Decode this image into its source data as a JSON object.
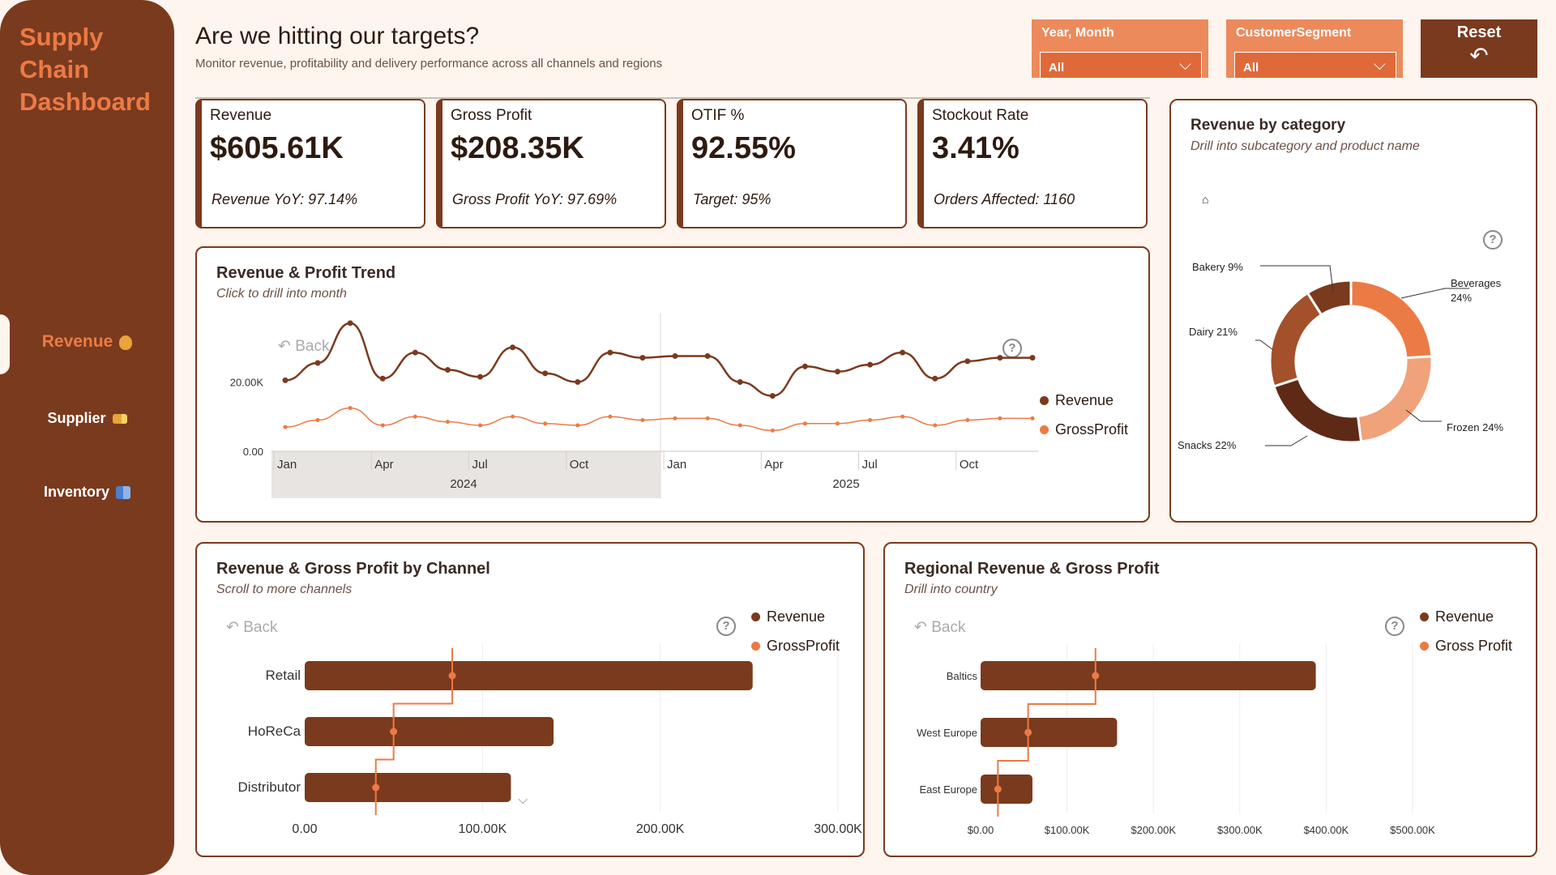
{
  "colors": {
    "revenue": "#7a3a1e",
    "profit": "#ec7a45",
    "accent": "#ec7a45",
    "sidebar": "#7a3a1e"
  },
  "sidebar": {
    "brand_line1": "Supply",
    "brand_line2": "Chain",
    "brand_line3": "Dashboard",
    "items": [
      {
        "label": "Revenue",
        "icon": "money-bag-icon",
        "active": true
      },
      {
        "label": "Supplier",
        "icon": "truck-icon",
        "active": false
      },
      {
        "label": "Inventory",
        "icon": "boxes-icon",
        "active": false
      }
    ]
  },
  "header": {
    "title": "Are we hitting our targets?",
    "subtitle": "Monitor revenue, profitability and delivery performance across all channels and regions"
  },
  "filters": {
    "year_month": {
      "label": "Year, Month",
      "value": "All"
    },
    "segment": {
      "label": "CustomerSegment",
      "value": "All"
    },
    "reset_label": "Reset"
  },
  "kpis": [
    {
      "title": "Revenue",
      "value": "$605.61K",
      "sub": "Revenue YoY: 97.14%"
    },
    {
      "title": "Gross Profit",
      "value": "$208.35K",
      "sub": "Gross Profit YoY: 97.69%"
    },
    {
      "title": "OTIF %",
      "value": "92.55%",
      "sub": "Target: 95%"
    },
    {
      "title": "Stockout Rate",
      "value": "3.41%",
      "sub": "Orders Affected: 1160"
    }
  ],
  "trend": {
    "title": "Revenue & Profit Trend",
    "subtitle": "Click to drill into month",
    "back_label": "Back",
    "legend": [
      "Revenue",
      "GrossProfit"
    ]
  },
  "category": {
    "title": "Revenue by category",
    "subtitle": "Drill into subcategory and product name"
  },
  "channel": {
    "title": "Revenue & Gross Profit by Channel",
    "subtitle": "Scroll to more channels",
    "back_label": "Back",
    "legend": [
      "Revenue",
      "GrossProfit"
    ]
  },
  "regional": {
    "title": "Regional Revenue & Gross Profit",
    "subtitle": "Drill into country",
    "back_label": "Back",
    "legend": [
      "Revenue",
      "Gross Profit"
    ]
  },
  "chart_data": [
    {
      "type": "line",
      "x_tick_labels": [
        "Jan",
        "Apr",
        "Jul",
        "Oct",
        "Jan",
        "Apr",
        "Jul",
        "Oct"
      ],
      "x_year_labels": [
        "2024",
        "2025"
      ],
      "y_tick_labels": [
        "0.00",
        "20.00K"
      ],
      "ylim": [
        0,
        40000
      ],
      "series": [
        {
          "name": "Revenue",
          "values": [
            20500,
            25500,
            37000,
            21000,
            28500,
            23500,
            21500,
            30000,
            22500,
            20000,
            28500,
            27000,
            27500,
            27500,
            20000,
            16000,
            24500,
            23000,
            25000,
            28500,
            21000,
            26000,
            27000,
            27000
          ]
        },
        {
          "name": "GrossProfit",
          "values": [
            7000,
            9000,
            12500,
            7500,
            10000,
            8500,
            7500,
            10000,
            8000,
            7500,
            10000,
            9000,
            9500,
            9500,
            7500,
            6000,
            8000,
            8000,
            9000,
            10000,
            7500,
            9000,
            9500,
            9500
          ]
        }
      ]
    },
    {
      "type": "pie",
      "categories": [
        "Beverages",
        "Frozen",
        "Snacks",
        "Dairy",
        "Bakery"
      ],
      "labels": [
        "Beverages 24%",
        "Frozen 24%",
        "Snacks 22%",
        "Dairy 21%",
        "Bakery 9%"
      ],
      "values": [
        24,
        24,
        22,
        21,
        9
      ],
      "colors": [
        "#ec7a45",
        "#f0a27a",
        "#5e2a16",
        "#a4502a",
        "#7a3a1e"
      ]
    },
    {
      "type": "bar",
      "categories": [
        "Retail",
        "HoReCa",
        "Distributor"
      ],
      "xlim": [
        0,
        300000
      ],
      "x_tick_labels": [
        "0.00",
        "100.00K",
        "200.00K",
        "300.00K"
      ],
      "series": [
        {
          "name": "Revenue",
          "values": [
            252000,
            140000,
            116000
          ]
        },
        {
          "name": "GrossProfit",
          "values": [
            83000,
            50000,
            40000
          ]
        }
      ]
    },
    {
      "type": "bar",
      "categories": [
        "Baltics",
        "West Europe",
        "East Europe"
      ],
      "xlim": [
        0,
        500000
      ],
      "x_tick_labels": [
        "$0.00",
        "$100.00K",
        "$200.00K",
        "$300.00K",
        "$400.00K",
        "$500.00K"
      ],
      "series": [
        {
          "name": "Revenue",
          "values": [
            388000,
            158000,
            60000
          ]
        },
        {
          "name": "Gross Profit",
          "values": [
            133000,
            55000,
            20000
          ]
        }
      ]
    }
  ]
}
